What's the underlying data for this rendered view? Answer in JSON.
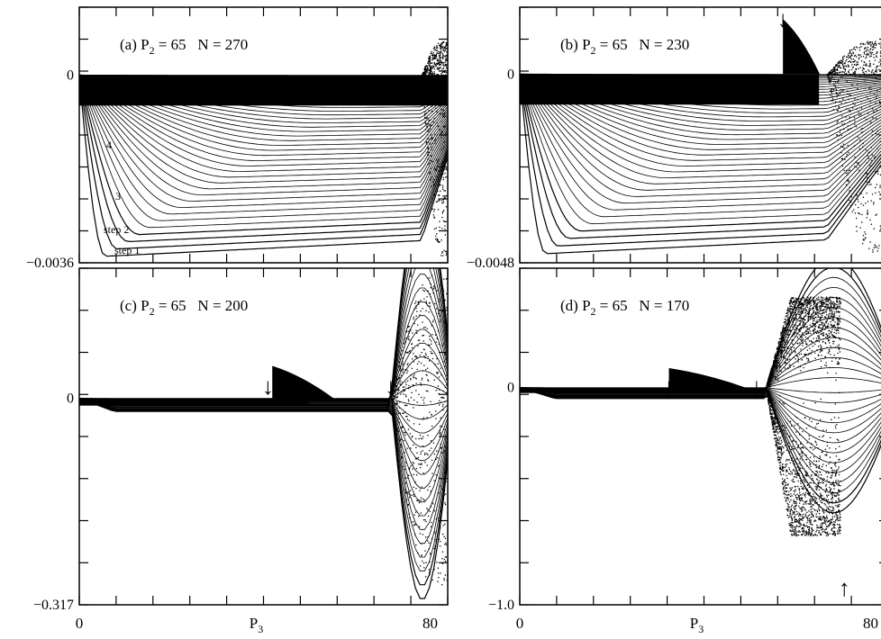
{
  "chart_data": [
    {
      "type": "scatter",
      "title": "(a) P2 = 65   N = 270",
      "title_parts": {
        "prefix": "(a) P",
        "sub": "2",
        "rest": " = 65   N = 270"
      },
      "xlabel": "",
      "ylabel": "",
      "xlim": [
        0,
        84
      ],
      "ylim": [
        -0.0036,
        0.0013
      ],
      "yticks_labeled": [
        {
          "value": 0,
          "label": "0"
        },
        {
          "value": -0.0036,
          "label": "−0.0036"
        }
      ],
      "xticks_labeled": [],
      "curve_labels": [
        "4",
        "3",
        "step 2",
        "step 1"
      ],
      "arrows": [
        {
          "x": 80,
          "direction": "down"
        }
      ],
      "family": {
        "count": 42,
        "min": -0.0035,
        "onset": null,
        "onset_peak": 0,
        "chaos_start": 78
      },
      "grid": false
    },
    {
      "type": "scatter",
      "title": "(b) P2 = 65   N = 230",
      "title_parts": {
        "prefix": "(b) P",
        "sub": "2",
        "rest": " = 65   N = 230"
      },
      "xlabel": "",
      "ylabel": "",
      "xlim": [
        0,
        84
      ],
      "ylim": [
        -0.0048,
        0.0017
      ],
      "yticks_labeled": [
        {
          "value": 0,
          "label": "0"
        },
        {
          "value": -0.0048,
          "label": "−0.0048"
        }
      ],
      "xticks_labeled": [],
      "curve_labels": [],
      "arrows": [
        {
          "x": 60,
          "direction": "down"
        }
      ],
      "family": {
        "count": 40,
        "min": -0.0046,
        "onset": 60,
        "onset_peak": 0.0014,
        "chaos_start": 70
      },
      "grid": false
    },
    {
      "type": "scatter",
      "title": "(c) P2 = 65   N = 200",
      "title_parts": {
        "prefix": "(c) P",
        "sub": "2",
        "rest": " = 65   N = 200"
      },
      "xlabel": "P3",
      "xlabel_parts": {
        "prefix": "P",
        "sub": "3"
      },
      "ylabel": "",
      "xlim": [
        0,
        84
      ],
      "ylim": [
        -0.317,
        0.2
      ],
      "yticks_labeled": [
        {
          "value": 0,
          "label": "0"
        },
        {
          "value": -0.317,
          "label": "−0.317"
        }
      ],
      "xticks_labeled": [
        {
          "value": 0,
          "label": "0"
        },
        {
          "value": 80,
          "label": "80"
        }
      ],
      "curve_labels": [],
      "arrows": [
        {
          "x": 43,
          "direction": "down"
        },
        {
          "x": 71,
          "direction": "down"
        }
      ],
      "family": {
        "count": 30,
        "min": -0.02,
        "onset": 44,
        "onset_peak": 0.05,
        "chaos_start": 71
      },
      "grid": false
    },
    {
      "type": "scatter",
      "title": "(d) P2 = 65   N = 170",
      "title_parts": {
        "prefix": "(d) P",
        "sub": "2",
        "rest": " = 65   N = 170"
      },
      "xlabel": "P3",
      "xlabel_parts": {
        "prefix": "P",
        "sub": "3"
      },
      "ylabel": "",
      "xlim": [
        0,
        84
      ],
      "ylim": [
        -1.0,
        0.55
      ],
      "yticks_labeled": [
        {
          "value": 0,
          "label": "0"
        },
        {
          "value": -1.0,
          "label": "−1.0"
        }
      ],
      "xticks_labeled": [
        {
          "value": 0,
          "label": "0"
        },
        {
          "value": 80,
          "label": "80"
        }
      ],
      "curve_labels": [],
      "arrows": [
        {
          "x": 34,
          "direction": "down"
        },
        {
          "x": 54,
          "direction": "down"
        },
        {
          "x": 74,
          "direction": "up"
        }
      ],
      "family": {
        "count": 26,
        "min": -0.05,
        "onset": 34,
        "onset_peak": 0.09,
        "chaos_start": 56,
        "band_top": 0.42,
        "band_bottom": -0.68,
        "cutoff": 73
      },
      "grid": false
    }
  ]
}
